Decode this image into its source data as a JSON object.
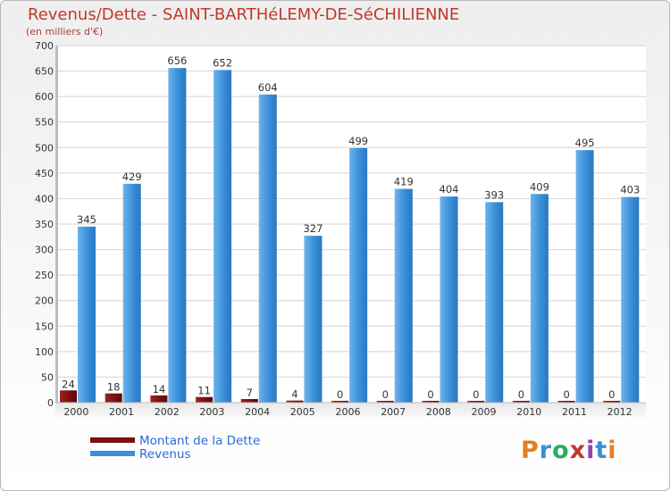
{
  "title": "Revenus/Dette - SAINT-BARTHéLEMY-DE-SéCHILIENNE",
  "subtitle": "(en milliers d'€)",
  "logo_text": "Proxiti",
  "colors": {
    "dette": "#7a1010",
    "revenus": "#3a8fd9",
    "title": "#c0392b",
    "legend_text": "#2b6bd6"
  },
  "chart_data": {
    "type": "bar",
    "title": "Revenus/Dette - SAINT-BARTHéLEMY-DE-SéCHILIENNE",
    "ylabel": "(en milliers d'€)",
    "xlabel": "",
    "categories": [
      "2000",
      "2001",
      "2002",
      "2003",
      "2004",
      "2005",
      "2006",
      "2007",
      "2008",
      "2009",
      "2010",
      "2011",
      "2012"
    ],
    "series": [
      {
        "name": "Montant de la Dette",
        "values": [
          24,
          18,
          14,
          11,
          7,
          4,
          0,
          0,
          0,
          0,
          0,
          0,
          0
        ]
      },
      {
        "name": "Revenus",
        "values": [
          345,
          429,
          656,
          652,
          604,
          327,
          499,
          419,
          404,
          393,
          409,
          495,
          403
        ]
      }
    ],
    "ylim": [
      0,
      700
    ],
    "yticks": [
      0,
      50,
      100,
      150,
      200,
      250,
      300,
      350,
      400,
      450,
      500,
      550,
      600,
      650,
      700
    ],
    "grid": true,
    "legend_position": "bottom-left"
  }
}
